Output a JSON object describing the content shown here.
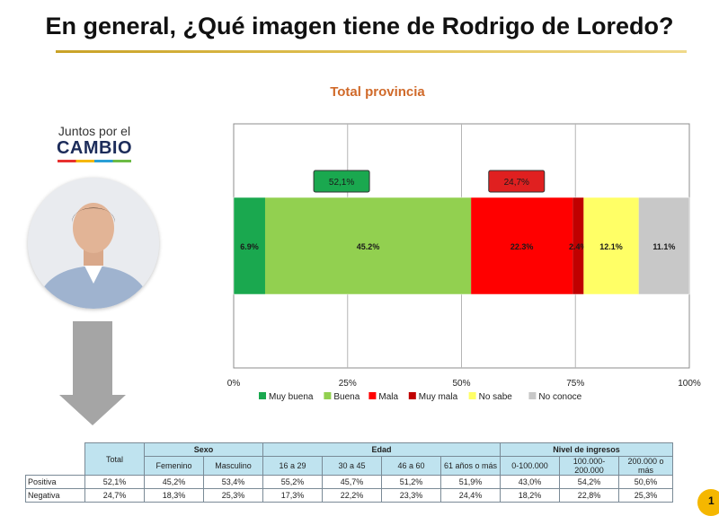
{
  "header": {
    "title": "En general, ¿Qué imagen tiene de Rodrigo de Loredo?",
    "subtitle": "Total provincia"
  },
  "logo": {
    "line1": "Juntos por el",
    "line2": "CAMBIO"
  },
  "colors": {
    "muy_buena": "#1aa84f",
    "buena": "#92d050",
    "mala": "#ff0000",
    "muy_mala": "#c00000",
    "no_sabe": "#ffff66",
    "no_conoce": "#c8c8c8",
    "title_accent": "#d06a2a",
    "table_header": "#bfe3ef"
  },
  "chart_data": {
    "type": "bar",
    "orientation": "horizontal-stacked",
    "title": "Total provincia",
    "series": [
      {
        "name": "Muy buena",
        "value": 6.9,
        "label": "6.9%"
      },
      {
        "name": "Buena",
        "value": 45.2,
        "label": "45.2%"
      },
      {
        "name": "Mala",
        "value": 22.3,
        "label": "22.3%"
      },
      {
        "name": "Muy mala",
        "value": 2.4,
        "label": "2.4%"
      },
      {
        "name": "No  sabe",
        "value": 12.1,
        "label": "12.1%"
      },
      {
        "name": "No conoce",
        "value": 11.1,
        "label": "11.1%"
      }
    ],
    "annotations": [
      {
        "label": "52,1%",
        "kind": "positiva",
        "spans": [
          "Muy buena",
          "Buena"
        ]
      },
      {
        "label": "24,7%",
        "kind": "negativa",
        "spans": [
          "Mala",
          "Muy mala"
        ]
      }
    ],
    "x_ticks": [
      "0%",
      "25%",
      "50%",
      "75%",
      "100%"
    ],
    "xlim": [
      0,
      100
    ],
    "grid": true,
    "legend": "bottom"
  },
  "table": {
    "groups": [
      "Sexo",
      "Edad",
      "Nivel de ingresos"
    ],
    "total_label": "Total",
    "columns": [
      "Femenino",
      "Masculino",
      "16 a 29",
      "30 a 45",
      "46 a 60",
      "61 años o más",
      "0-100.000",
      "100.000-200.000",
      "200.000 o más"
    ],
    "rows": [
      {
        "label": "Positiva",
        "values": [
          "52,1%",
          "45,2%",
          "53,4%",
          "55,2%",
          "45,7%",
          "51,2%",
          "51,9%",
          "43,0%",
          "54,2%",
          "50,6%"
        ]
      },
      {
        "label": "Negativa",
        "values": [
          "24,7%",
          "18,3%",
          "25,3%",
          "17,3%",
          "22,2%",
          "23,3%",
          "24,4%",
          "18,2%",
          "22,8%",
          "25,3%"
        ]
      }
    ]
  },
  "page_number": "1"
}
